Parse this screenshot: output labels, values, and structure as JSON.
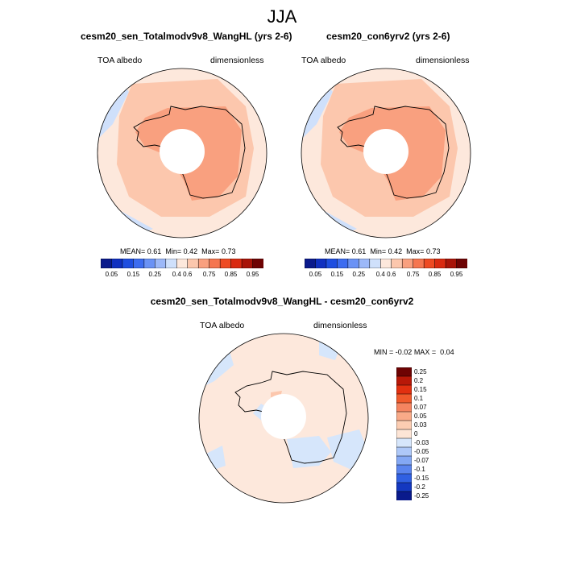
{
  "season": "JJA",
  "panel_left": {
    "title": "cesm20_sen_Totalmodv9v8_WangHL (yrs 2-6)",
    "variable": "TOA albedo",
    "units": "dimensionless",
    "stats": {
      "mean_label": "MEAN=",
      "mean": "0.61",
      "min_label": "Min=",
      "min": "0.42",
      "max_label": "Max=",
      "max": "0.73"
    }
  },
  "panel_right": {
    "title": "cesm20_con6yrv2 (yrs 2-6)",
    "variable": "TOA albedo",
    "units": "dimensionless",
    "stats": {
      "mean_label": "MEAN=",
      "mean": "0.61",
      "min_label": "Min=",
      "min": "0.42",
      "max_label": "Max=",
      "max": "0.73"
    }
  },
  "panel_diff": {
    "title": "cesm20_sen_Totalmodv9v8_WangHL - cesm20_con6yrv2",
    "variable": "TOA albedo",
    "units": "dimensionless",
    "stats": {
      "min_label": "MIN =",
      "min": "-0.02",
      "max_label": "MAX =",
      "max": "0.04"
    }
  },
  "colorbar_main": {
    "colors": [
      "#0a1a8c",
      "#1030c0",
      "#1e4ee0",
      "#3c6cf0",
      "#6a92f5",
      "#9cb8f8",
      "#cfe0fb",
      "#fde8dc",
      "#fcc7ad",
      "#f9a07f",
      "#f57650",
      "#ee4a22",
      "#d92a10",
      "#a81408",
      "#6e0303"
    ],
    "labels": [
      "0.05",
      "0.15",
      "0.25",
      "0.4",
      "0.6",
      "0.75",
      "0.85",
      "0.95"
    ]
  },
  "colorbar_diff": {
    "colors": [
      "#6e0303",
      "#b81808",
      "#e23010",
      "#f05a2c",
      "#f58460",
      "#f9aa88",
      "#fccdb2",
      "#fde5d6",
      "#d6e6fb",
      "#aec8f8",
      "#84a8f4",
      "#5a84ee",
      "#3060e2",
      "#1438c0",
      "#0a1a8c"
    ],
    "labels": [
      "0.25",
      "0.2",
      "0.15",
      "0.1",
      "0.07",
      "0.05",
      "0.03",
      "0",
      "-0.03",
      "-0.05",
      "-0.07",
      "-0.1",
      "-0.15",
      "-0.2",
      "-0.25"
    ]
  },
  "map_colors": {
    "outer": "#fde8dc",
    "mid": "#fcc7ad",
    "inner": "#f9a07f",
    "neg": "#cfe0fb",
    "diff_base": "#fde8dc",
    "diff_neg": "#d6e6fb",
    "diff_pos": "#fcc7ad"
  }
}
